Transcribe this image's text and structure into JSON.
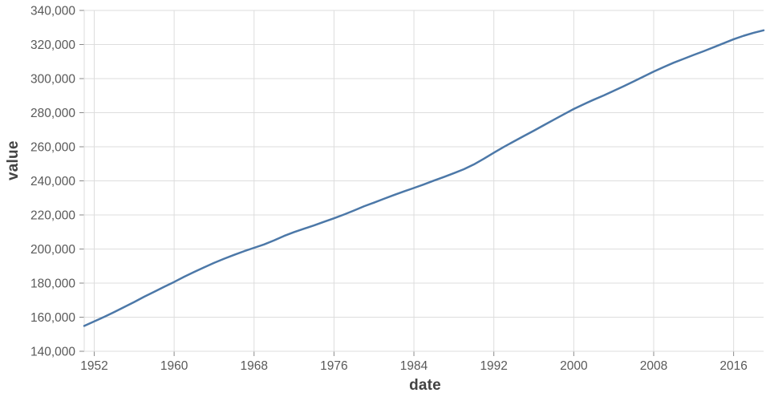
{
  "chart_data": {
    "type": "line",
    "title": "",
    "xlabel": "date",
    "ylabel": "value",
    "series_name": "value",
    "x": [
      1951,
      1952,
      1953,
      1954,
      1955,
      1956,
      1957,
      1958,
      1959,
      1960,
      1961,
      1962,
      1963,
      1964,
      1965,
      1966,
      1967,
      1968,
      1969,
      1970,
      1971,
      1972,
      1973,
      1974,
      1975,
      1976,
      1977,
      1978,
      1979,
      1980,
      1981,
      1982,
      1983,
      1984,
      1985,
      1986,
      1987,
      1988,
      1989,
      1990,
      1991,
      1992,
      1993,
      1994,
      1995,
      1996,
      1997,
      1998,
      1999,
      2000,
      2001,
      2002,
      2003,
      2004,
      2005,
      2006,
      2007,
      2008,
      2009,
      2010,
      2011,
      2012,
      2013,
      2014,
      2015,
      2016,
      2017,
      2018,
      2019
    ],
    "values": [
      154878,
      157553,
      160184,
      163026,
      165931,
      168903,
      171984,
      174882,
      177830,
      180671,
      183691,
      186538,
      189242,
      191889,
      194303,
      196560,
      198712,
      200706,
      202677,
      205052,
      207661,
      209896,
      211909,
      213854,
      215973,
      218035,
      220239,
      222585,
      225055,
      227225,
      229466,
      231664,
      233792,
      235825,
      237924,
      240133,
      242289,
      244499,
      246819,
      249623,
      252981,
      256514,
      259919,
      263126,
      266278,
      269394,
      272657,
      275854,
      279040,
      282162,
      284969,
      287625,
      290108,
      292805,
      295517,
      298380,
      301231,
      304094,
      306772,
      309326,
      311583,
      313878,
      316059,
      318386,
      320739,
      323072,
      325122,
      326838,
      328330
    ],
    "xlim": [
      1951,
      2019
    ],
    "ylim": [
      140000,
      340000
    ],
    "x_ticks": [
      1952,
      1960,
      1968,
      1976,
      1984,
      1992,
      2000,
      2008,
      2016
    ],
    "y_ticks": [
      140000,
      160000,
      180000,
      200000,
      220000,
      240000,
      260000,
      280000,
      300000,
      320000,
      340000
    ],
    "grid": true,
    "legend": "none",
    "colors": {
      "line": "#4c78a8",
      "grid": "#dddddd",
      "axis_domain": "#dddddd",
      "tick": "#8a8a8a",
      "label": "#595959",
      "title": "#434343",
      "background": "#ffffff"
    }
  }
}
